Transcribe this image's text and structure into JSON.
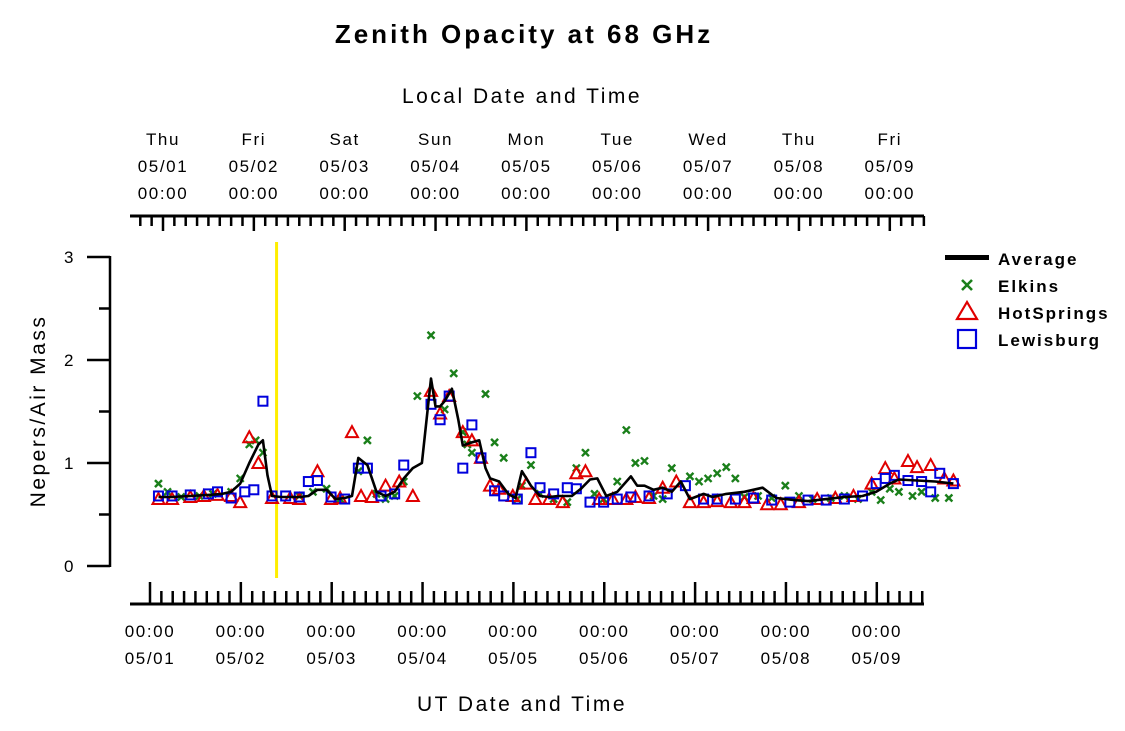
{
  "chart_data": {
    "type": "line",
    "title": "Zenith Opacity at 68 GHz",
    "top_axis_label": "Local Date and Time",
    "xlabel": "UT Date and Time",
    "ylabel": "Nepers/Air Mass",
    "ylim": [
      0,
      3
    ],
    "y_ticks": [
      "0",
      "1",
      "2",
      "3"
    ],
    "xlim": [
      0,
      8.7
    ],
    "x_unit": "days since 05/01 00:00 UT",
    "top_ticks": [
      {
        "day": "Thu",
        "date": "05/01",
        "time": "00:00"
      },
      {
        "day": "Fri",
        "date": "05/02",
        "time": "00:00"
      },
      {
        "day": "Sat",
        "date": "05/03",
        "time": "00:00"
      },
      {
        "day": "Sun",
        "date": "05/04",
        "time": "00:00"
      },
      {
        "day": "Mon",
        "date": "05/05",
        "time": "00:00"
      },
      {
        "day": "Tue",
        "date": "05/06",
        "time": "00:00"
      },
      {
        "day": "Wed",
        "date": "05/07",
        "time": "00:00"
      },
      {
        "day": "Thu",
        "date": "05/08",
        "time": "00:00"
      },
      {
        "day": "Fri",
        "date": "05/09",
        "time": "00:00"
      }
    ],
    "bottom_ticks": [
      {
        "time": "00:00",
        "date": "05/01"
      },
      {
        "time": "00:00",
        "date": "05/02"
      },
      {
        "time": "00:00",
        "date": "05/03"
      },
      {
        "time": "00:00",
        "date": "05/04"
      },
      {
        "time": "00:00",
        "date": "05/05"
      },
      {
        "time": "00:00",
        "date": "05/06"
      },
      {
        "time": "00:00",
        "date": "05/07"
      },
      {
        "time": "00:00",
        "date": "05/08"
      },
      {
        "time": "00:00",
        "date": "05/09"
      }
    ],
    "current_time_marker": 1.25,
    "colors": {
      "average": "#000000",
      "elkins": "#1a7f1a",
      "hotsprings": "#e00000",
      "lewisburg": "#0000dd",
      "marker": "#ffee00"
    },
    "legend": [
      "Average",
      "Elkins",
      "HotSprings",
      "Lewisburg"
    ],
    "series": [
      {
        "name": "Average",
        "marker": "line",
        "points": [
          [
            -0.05,
            0.67
          ],
          [
            0.1,
            0.67
          ],
          [
            0.3,
            0.68
          ],
          [
            0.5,
            0.69
          ],
          [
            0.65,
            0.7
          ],
          [
            0.75,
            0.72
          ],
          [
            0.85,
            0.8
          ],
          [
            0.95,
            1.0
          ],
          [
            1.05,
            1.18
          ],
          [
            1.1,
            1.22
          ],
          [
            1.15,
            0.88
          ],
          [
            1.2,
            0.68
          ],
          [
            1.3,
            0.67
          ],
          [
            1.5,
            0.67
          ],
          [
            1.6,
            0.68
          ],
          [
            1.7,
            0.74
          ],
          [
            1.8,
            0.74
          ],
          [
            1.9,
            0.65
          ],
          [
            2.0,
            0.66
          ],
          [
            2.08,
            0.68
          ],
          [
            2.15,
            1.05
          ],
          [
            2.25,
            0.98
          ],
          [
            2.35,
            0.72
          ],
          [
            2.45,
            0.68
          ],
          [
            2.55,
            0.72
          ],
          [
            2.65,
            0.85
          ],
          [
            2.75,
            0.95
          ],
          [
            2.85,
            1.0
          ],
          [
            2.95,
            1.82
          ],
          [
            3.0,
            1.55
          ],
          [
            3.05,
            1.55
          ],
          [
            3.1,
            1.6
          ],
          [
            3.18,
            1.72
          ],
          [
            3.25,
            1.42
          ],
          [
            3.3,
            1.17
          ],
          [
            3.4,
            1.2
          ],
          [
            3.48,
            1.22
          ],
          [
            3.55,
            0.95
          ],
          [
            3.6,
            0.85
          ],
          [
            3.7,
            0.82
          ],
          [
            3.8,
            0.7
          ],
          [
            3.88,
            0.66
          ],
          [
            3.95,
            0.92
          ],
          [
            4.05,
            0.78
          ],
          [
            4.15,
            0.68
          ],
          [
            4.25,
            0.67
          ],
          [
            4.35,
            0.68
          ],
          [
            4.5,
            0.68
          ],
          [
            4.6,
            0.75
          ],
          [
            4.7,
            0.84
          ],
          [
            4.78,
            0.85
          ],
          [
            4.88,
            0.68
          ],
          [
            5.0,
            0.72
          ],
          [
            5.15,
            0.87
          ],
          [
            5.22,
            0.78
          ],
          [
            5.3,
            0.78
          ],
          [
            5.4,
            0.74
          ],
          [
            5.5,
            0.76
          ],
          [
            5.6,
            0.72
          ],
          [
            5.7,
            0.82
          ],
          [
            5.8,
            0.65
          ],
          [
            5.95,
            0.7
          ],
          [
            6.05,
            0.67
          ],
          [
            6.2,
            0.7
          ],
          [
            6.4,
            0.72
          ],
          [
            6.6,
            0.76
          ],
          [
            6.75,
            0.66
          ],
          [
            6.95,
            0.64
          ],
          [
            7.1,
            0.63
          ],
          [
            7.3,
            0.65
          ],
          [
            7.5,
            0.67
          ],
          [
            7.7,
            0.68
          ],
          [
            7.85,
            0.72
          ],
          [
            8.0,
            0.8
          ],
          [
            8.1,
            0.84
          ],
          [
            8.3,
            0.83
          ],
          [
            8.5,
            0.82
          ],
          [
            8.7,
            0.8
          ]
        ]
      },
      {
        "name": "Elkins",
        "marker": "x",
        "points": [
          [
            -0.05,
            0.8
          ],
          [
            0.05,
            0.72
          ],
          [
            0.2,
            0.67
          ],
          [
            0.4,
            0.68
          ],
          [
            0.55,
            0.7
          ],
          [
            0.75,
            0.72
          ],
          [
            0.85,
            0.85
          ],
          [
            0.95,
            1.18
          ],
          [
            1.02,
            1.22
          ],
          [
            1.1,
            1.1
          ],
          [
            1.5,
            0.68
          ],
          [
            1.65,
            0.72
          ],
          [
            1.8,
            0.75
          ],
          [
            1.95,
            0.65
          ],
          [
            2.15,
            0.92
          ],
          [
            2.25,
            1.22
          ],
          [
            2.35,
            0.7
          ],
          [
            2.45,
            0.65
          ],
          [
            2.55,
            0.68
          ],
          [
            2.65,
            0.82
          ],
          [
            2.8,
            1.65
          ],
          [
            2.95,
            2.24
          ],
          [
            3.1,
            1.52
          ],
          [
            3.2,
            1.87
          ],
          [
            3.3,
            1.3
          ],
          [
            3.35,
            1.18
          ],
          [
            3.4,
            1.1
          ],
          [
            3.55,
            1.67
          ],
          [
            3.65,
            1.2
          ],
          [
            3.75,
            1.05
          ],
          [
            3.9,
            0.65
          ],
          [
            3.95,
            0.78
          ],
          [
            4.05,
            0.98
          ],
          [
            4.15,
            0.7
          ],
          [
            4.3,
            0.65
          ],
          [
            4.45,
            0.62
          ],
          [
            4.55,
            0.95
          ],
          [
            4.65,
            1.1
          ],
          [
            4.75,
            0.7
          ],
          [
            4.85,
            0.65
          ],
          [
            5.0,
            0.82
          ],
          [
            5.1,
            1.32
          ],
          [
            5.2,
            1.0
          ],
          [
            5.3,
            1.02
          ],
          [
            5.4,
            0.68
          ],
          [
            5.5,
            0.65
          ],
          [
            5.6,
            0.95
          ],
          [
            5.8,
            0.87
          ],
          [
            5.9,
            0.82
          ],
          [
            6.0,
            0.85
          ],
          [
            6.1,
            0.9
          ],
          [
            6.2,
            0.96
          ],
          [
            6.3,
            0.85
          ],
          [
            6.4,
            0.67
          ],
          [
            6.55,
            0.68
          ],
          [
            6.7,
            0.66
          ],
          [
            6.85,
            0.78
          ],
          [
            7.0,
            0.68
          ],
          [
            7.15,
            0.65
          ],
          [
            7.35,
            0.66
          ],
          [
            7.5,
            0.68
          ],
          [
            7.65,
            0.65
          ],
          [
            7.8,
            0.72
          ],
          [
            7.9,
            0.64
          ],
          [
            8.0,
            0.75
          ],
          [
            8.1,
            0.72
          ],
          [
            8.25,
            0.68
          ],
          [
            8.35,
            0.72
          ],
          [
            8.5,
            0.66
          ],
          [
            8.65,
            0.66
          ]
        ]
      },
      {
        "name": "HotSprings",
        "marker": "triangle",
        "points": [
          [
            -0.05,
            0.65
          ],
          [
            0.1,
            0.65
          ],
          [
            0.3,
            0.67
          ],
          [
            0.45,
            0.68
          ],
          [
            0.6,
            0.69
          ],
          [
            0.75,
            0.68
          ],
          [
            0.85,
            0.62
          ],
          [
            0.95,
            1.25
          ],
          [
            1.05,
            1.0
          ],
          [
            1.2,
            0.66
          ],
          [
            1.4,
            0.66
          ],
          [
            1.5,
            0.65
          ],
          [
            1.7,
            0.92
          ],
          [
            1.85,
            0.65
          ],
          [
            1.95,
            0.66
          ],
          [
            2.08,
            1.3
          ],
          [
            2.18,
            0.68
          ],
          [
            2.3,
            0.67
          ],
          [
            2.45,
            0.78
          ],
          [
            2.6,
            0.82
          ],
          [
            2.75,
            0.68
          ],
          [
            2.95,
            1.7
          ],
          [
            3.05,
            1.48
          ],
          [
            3.15,
            1.65
          ],
          [
            3.3,
            1.3
          ],
          [
            3.4,
            1.22
          ],
          [
            3.5,
            1.05
          ],
          [
            3.6,
            0.78
          ],
          [
            3.7,
            0.75
          ],
          [
            3.85,
            0.68
          ],
          [
            4.0,
            0.8
          ],
          [
            4.1,
            0.65
          ],
          [
            4.25,
            0.65
          ],
          [
            4.4,
            0.62
          ],
          [
            4.55,
            0.9
          ],
          [
            4.65,
            0.92
          ],
          [
            4.8,
            0.65
          ],
          [
            4.95,
            0.65
          ],
          [
            5.1,
            0.65
          ],
          [
            5.2,
            0.67
          ],
          [
            5.35,
            0.66
          ],
          [
            5.5,
            0.76
          ],
          [
            5.65,
            0.82
          ],
          [
            5.8,
            0.62
          ],
          [
            5.95,
            0.62
          ],
          [
            6.1,
            0.63
          ],
          [
            6.25,
            0.62
          ],
          [
            6.4,
            0.62
          ],
          [
            6.5,
            0.66
          ],
          [
            6.65,
            0.6
          ],
          [
            6.8,
            0.6
          ],
          [
            7.0,
            0.62
          ],
          [
            7.2,
            0.65
          ],
          [
            7.4,
            0.66
          ],
          [
            7.6,
            0.68
          ],
          [
            7.8,
            0.8
          ],
          [
            7.95,
            0.95
          ],
          [
            8.05,
            0.85
          ],
          [
            8.2,
            1.02
          ],
          [
            8.3,
            0.96
          ],
          [
            8.45,
            0.98
          ],
          [
            8.6,
            0.85
          ],
          [
            8.7,
            0.83
          ]
        ]
      },
      {
        "name": "Lewisburg",
        "marker": "square",
        "points": [
          [
            -0.05,
            0.68
          ],
          [
            0.1,
            0.68
          ],
          [
            0.3,
            0.69
          ],
          [
            0.5,
            0.7
          ],
          [
            0.6,
            0.72
          ],
          [
            0.75,
            0.66
          ],
          [
            0.9,
            0.72
          ],
          [
            1.0,
            0.74
          ],
          [
            1.1,
            1.6
          ],
          [
            1.2,
            0.68
          ],
          [
            1.35,
            0.68
          ],
          [
            1.5,
            0.67
          ],
          [
            1.6,
            0.82
          ],
          [
            1.7,
            0.83
          ],
          [
            1.85,
            0.67
          ],
          [
            2.0,
            0.65
          ],
          [
            2.15,
            0.95
          ],
          [
            2.25,
            0.95
          ],
          [
            2.4,
            0.68
          ],
          [
            2.55,
            0.7
          ],
          [
            2.65,
            0.98
          ],
          [
            2.95,
            1.57
          ],
          [
            3.05,
            1.42
          ],
          [
            3.15,
            1.65
          ],
          [
            3.3,
            0.95
          ],
          [
            3.4,
            1.37
          ],
          [
            3.5,
            1.05
          ],
          [
            3.65,
            0.73
          ],
          [
            3.75,
            0.68
          ],
          [
            3.9,
            0.65
          ],
          [
            4.05,
            1.1
          ],
          [
            4.15,
            0.76
          ],
          [
            4.3,
            0.7
          ],
          [
            4.45,
            0.76
          ],
          [
            4.55,
            0.75
          ],
          [
            4.7,
            0.62
          ],
          [
            4.85,
            0.62
          ],
          [
            5.0,
            0.65
          ],
          [
            5.15,
            0.67
          ],
          [
            5.35,
            0.68
          ],
          [
            5.55,
            0.7
          ],
          [
            5.75,
            0.78
          ],
          [
            5.95,
            0.65
          ],
          [
            6.1,
            0.65
          ],
          [
            6.3,
            0.65
          ],
          [
            6.5,
            0.66
          ],
          [
            6.7,
            0.64
          ],
          [
            6.9,
            0.62
          ],
          [
            7.1,
            0.64
          ],
          [
            7.3,
            0.64
          ],
          [
            7.5,
            0.65
          ],
          [
            7.7,
            0.68
          ],
          [
            7.85,
            0.8
          ],
          [
            7.95,
            0.85
          ],
          [
            8.05,
            0.88
          ],
          [
            8.2,
            0.83
          ],
          [
            8.35,
            0.82
          ],
          [
            8.45,
            0.72
          ],
          [
            8.55,
            0.9
          ],
          [
            8.7,
            0.8
          ]
        ]
      }
    ]
  }
}
